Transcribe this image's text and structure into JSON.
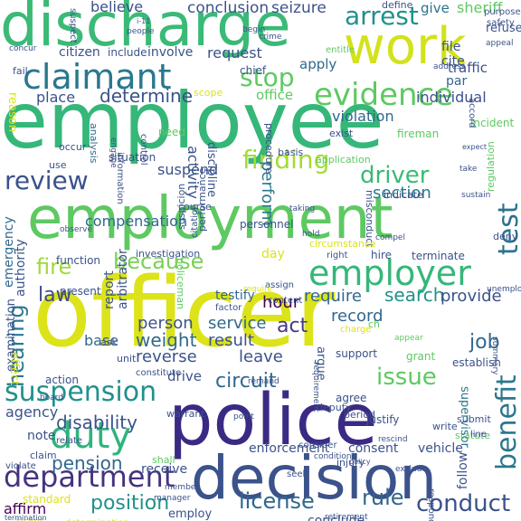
{
  "cloud": {
    "palette": {
      "deep_purple": "#440154",
      "indigo": "#3b528b",
      "teal": "#21918c",
      "green": "#5ec962",
      "yellow": "#dce319"
    },
    "words": [
      {
        "text": "discharge",
        "color": "#3aba76"
      },
      {
        "text": "work",
        "color": "#d2e21b"
      },
      {
        "text": "claimant",
        "color": "#2a788e"
      },
      {
        "text": "employee",
        "color": "#35b779"
      },
      {
        "text": "employment",
        "color": "#5ec962"
      },
      {
        "text": "officer",
        "color": "#dce319"
      },
      {
        "text": "police",
        "color": "#3b2a84"
      },
      {
        "text": "decision",
        "color": "#3b528b"
      },
      {
        "text": "evidence",
        "color": "#5ec962"
      },
      {
        "text": "arrest",
        "color": "#21918c"
      },
      {
        "text": "employer",
        "color": "#35b779"
      },
      {
        "text": "finding",
        "color": "#a5db36"
      },
      {
        "text": "duty",
        "color": "#2fb47c"
      },
      {
        "text": "department",
        "color": "#46337e"
      },
      {
        "text": "suspension",
        "color": "#21918c"
      },
      {
        "text": "review",
        "color": "#3b528b"
      },
      {
        "text": "driver",
        "color": "#3aba76"
      },
      {
        "text": "test",
        "color": "#2c728e"
      },
      {
        "text": "benefit",
        "color": "#2a788e"
      },
      {
        "text": "fire",
        "color": "#a0da39"
      },
      {
        "text": "because",
        "color": "#7ad151"
      },
      {
        "text": "law",
        "color": "#3e4a89"
      },
      {
        "text": "hearing",
        "color": "#2a788e"
      },
      {
        "text": "stop",
        "color": "#5ec962"
      },
      {
        "text": "determine",
        "color": "#3b528b"
      },
      {
        "text": "search",
        "color": "#21918c"
      },
      {
        "text": "provide",
        "color": "#3b528b"
      },
      {
        "text": "issue",
        "color": "#5ec962"
      },
      {
        "text": "circuit",
        "color": "#31688e"
      },
      {
        "text": "conduct",
        "color": "#3b528b"
      },
      {
        "text": "license",
        "color": "#31688e"
      },
      {
        "text": "rule",
        "color": "#31688e"
      },
      {
        "text": "position",
        "color": "#21918c"
      },
      {
        "text": "pension",
        "color": "#31688e"
      },
      {
        "text": "disability",
        "color": "#3b528b"
      },
      {
        "text": "job",
        "color": "#31688e"
      },
      {
        "text": "weight",
        "color": "#31688e"
      },
      {
        "text": "result",
        "color": "#3b528b"
      },
      {
        "text": "person",
        "color": "#3b528b"
      },
      {
        "text": "service",
        "color": "#31688e"
      },
      {
        "text": "act",
        "color": "#443983"
      },
      {
        "text": "record",
        "color": "#31688e"
      },
      {
        "text": "section",
        "color": "#2a788e"
      },
      {
        "text": "require",
        "color": "#31688e"
      },
      {
        "text": "hour",
        "color": "#440154"
      },
      {
        "text": "leave",
        "color": "#3b528b"
      },
      {
        "text": "reverse",
        "color": "#3b528b"
      },
      {
        "text": "base",
        "color": "#31688e"
      },
      {
        "text": "conclusion",
        "color": "#3b528b"
      },
      {
        "text": "seizure",
        "color": "#3b528b"
      },
      {
        "text": "believe",
        "color": "#3b528b"
      },
      {
        "text": "give",
        "color": "#2c728e"
      },
      {
        "text": "sheriff",
        "color": "#5ec962"
      },
      {
        "text": "request",
        "color": "#3b528b"
      },
      {
        "text": "apply",
        "color": "#31688e"
      },
      {
        "text": "perform",
        "color": "#2a788e"
      },
      {
        "text": "violation",
        "color": "#31688e"
      },
      {
        "text": "individual",
        "color": "#3b528b"
      },
      {
        "text": "activity",
        "color": "#3b528b"
      },
      {
        "text": "discipline",
        "color": "#3b528b"
      },
      {
        "text": "suspend",
        "color": "#3b528b"
      },
      {
        "text": "compensation",
        "color": "#31688e"
      },
      {
        "text": "place",
        "color": "#3b528b"
      },
      {
        "text": "office",
        "color": "#5ec962"
      },
      {
        "text": "par",
        "color": "#31688e"
      },
      {
        "text": "traffic",
        "color": "#3b528b"
      },
      {
        "text": "file",
        "color": "#3b528b"
      },
      {
        "text": "cite",
        "color": "#3b528b"
      },
      {
        "text": "citizen",
        "color": "#3b528b"
      },
      {
        "text": "include",
        "color": "#3b528b"
      },
      {
        "text": "involve",
        "color": "#3b528b"
      },
      {
        "text": "reason",
        "color": "#dce319"
      },
      {
        "text": "authority",
        "color": "#3b528b"
      },
      {
        "text": "emergency",
        "color": "#31688e"
      },
      {
        "text": "arbitrator",
        "color": "#3b528b"
      },
      {
        "text": "report",
        "color": "#3b528b"
      },
      {
        "text": "personnel",
        "color": "#3b528b"
      },
      {
        "text": "testify",
        "color": "#31688e"
      },
      {
        "text": "investigation",
        "color": "#3b528b"
      },
      {
        "text": "hire",
        "color": "#3b528b"
      },
      {
        "text": "terminate",
        "color": "#3b528b"
      },
      {
        "text": "supervisor",
        "color": "#2a788e"
      },
      {
        "text": "examination",
        "color": "#3b528b"
      },
      {
        "text": "agency",
        "color": "#3b528b"
      },
      {
        "text": "note",
        "color": "#3b528b"
      },
      {
        "text": "drive",
        "color": "#3b528b"
      },
      {
        "text": "receive",
        "color": "#3b528b"
      },
      {
        "text": "enforcement",
        "color": "#3b528b"
      },
      {
        "text": "consent",
        "color": "#3b528b"
      },
      {
        "text": "vehicle",
        "color": "#3b528b"
      },
      {
        "text": "follow",
        "color": "#3b528b"
      },
      {
        "text": "conclude",
        "color": "#3b528b"
      },
      {
        "text": "employ",
        "color": "#3b528b"
      },
      {
        "text": "affirm",
        "color": "#440154"
      },
      {
        "text": "agree",
        "color": "#3b528b"
      },
      {
        "text": "deputy",
        "color": "#3b528b"
      },
      {
        "text": "justify",
        "color": "#3b528b"
      },
      {
        "text": "submit",
        "color": "#3b528b"
      },
      {
        "text": "grant",
        "color": "#5ec962"
      },
      {
        "text": "establish",
        "color": "#3b528b"
      },
      {
        "text": "support",
        "color": "#3b528b"
      },
      {
        "text": "incident",
        "color": "#5ec962"
      },
      {
        "text": "fireman",
        "color": "#5ec962"
      },
      {
        "text": "misconduct",
        "color": "#3b528b"
      },
      {
        "text": "application",
        "color": "#5ec962"
      },
      {
        "text": "basis",
        "color": "#3b528b"
      },
      {
        "text": "course",
        "color": "#3b528b"
      },
      {
        "text": "function",
        "color": "#3b528b"
      },
      {
        "text": "present",
        "color": "#3b528b"
      },
      {
        "text": "ask",
        "color": "#3b528b"
      },
      {
        "text": "effect",
        "color": "#dce319"
      },
      {
        "text": "situation",
        "color": "#3b528b"
      },
      {
        "text": "use",
        "color": "#3b528b"
      },
      {
        "text": "occur",
        "color": "#3b528b"
      },
      {
        "text": "analysis",
        "color": "#31688e"
      },
      {
        "text": "need",
        "color": "#5ec962"
      },
      {
        "text": "scope",
        "color": "#dce319"
      },
      {
        "text": "chief",
        "color": "#3b528b"
      },
      {
        "text": "procedure",
        "color": "#3b528b"
      },
      {
        "text": "deny",
        "color": "#3b528b"
      },
      {
        "text": "refuse",
        "color": "#3b528b"
      },
      {
        "text": "safety",
        "color": "#3b528b"
      },
      {
        "text": "define",
        "color": "#3b528b"
      },
      {
        "text": "accord",
        "color": "#3b528b"
      },
      {
        "text": "exist",
        "color": "#3b528b"
      },
      {
        "text": "indicate",
        "color": "#3b528b"
      },
      {
        "text": "circumstance",
        "color": "#dce319"
      },
      {
        "text": "argue",
        "color": "#3b528b"
      },
      {
        "text": "regulation",
        "color": "#5ec962"
      },
      {
        "text": "statute",
        "color": "#5ec962"
      },
      {
        "text": "period",
        "color": "#3b528b"
      },
      {
        "text": "injury",
        "color": "#3b528b"
      },
      {
        "text": "rescind",
        "color": "#3b528b"
      },
      {
        "text": "write",
        "color": "#3b528b"
      },
      {
        "text": "warrant",
        "color": "#3b528b"
      },
      {
        "text": "relate",
        "color": "#3b528b"
      },
      {
        "text": "claim",
        "color": "#3b528b"
      },
      {
        "text": "violate",
        "color": "#3b528b"
      },
      {
        "text": "constitute",
        "color": "#3b528b"
      },
      {
        "text": "performance",
        "color": "#3b528b"
      },
      {
        "text": "suspicion",
        "color": "#3b528b"
      },
      {
        "text": "citation",
        "color": "#3b528b"
      },
      {
        "text": "policeman",
        "color": "#5ec962"
      },
      {
        "text": "unit",
        "color": "#3b528b"
      },
      {
        "text": "day",
        "color": "#dce319"
      },
      {
        "text": "control",
        "color": "#3b528b"
      },
      {
        "text": "information",
        "color": "#3b528b"
      },
      {
        "text": "action",
        "color": "#3b528b"
      },
      {
        "text": "shall",
        "color": "#5ec962"
      },
      {
        "text": "standard",
        "color": "#dce319"
      },
      {
        "text": "ticket",
        "color": "#dce319"
      },
      {
        "text": "determination",
        "color": "#dce319"
      },
      {
        "text": "suspect",
        "color": "#3b528b"
      },
      {
        "text": "people",
        "color": "#3b528b"
      },
      {
        "text": "entitle",
        "color": "#5ec962"
      },
      {
        "text": "fail",
        "color": "#3b528b"
      },
      {
        "text": "purpose",
        "color": "#3b528b"
      },
      {
        "text": "unemployment",
        "color": "#3b528b"
      },
      {
        "text": "summary",
        "color": "#3b528b"
      },
      {
        "text": "condition",
        "color": "#3b528b"
      },
      {
        "text": "consider",
        "color": "#3b528b"
      },
      {
        "text": "respond",
        "color": "#3b528b"
      },
      {
        "text": "retirement",
        "color": "#3b528b"
      },
      {
        "text": "member",
        "color": "#3b528b"
      },
      {
        "text": "manager",
        "color": "#3b528b"
      },
      {
        "text": "observe",
        "color": "#3b528b"
      },
      {
        "text": "assign",
        "color": "#3b528b"
      },
      {
        "text": "content",
        "color": "#3b528b"
      },
      {
        "text": "factor",
        "color": "#3b528b"
      },
      {
        "text": "charge",
        "color": "#dce319"
      },
      {
        "text": "requirement",
        "color": "#3b528b"
      },
      {
        "text": "seek",
        "color": "#3b528b"
      },
      {
        "text": "point",
        "color": "#3b528b"
      },
      {
        "text": "line",
        "color": "#3b528b"
      },
      {
        "text": "take",
        "color": "#3b528b"
      },
      {
        "text": "right",
        "color": "#3b528b"
      },
      {
        "text": "termination",
        "color": "#3b528b"
      },
      {
        "text": "engage",
        "color": "#3b528b"
      },
      {
        "text": "address",
        "color": "#3b528b"
      },
      {
        "text": "board",
        "color": "#3b528b"
      },
      {
        "text": "crime",
        "color": "#3b528b"
      },
      {
        "text": "begin",
        "color": "#3b528b"
      },
      {
        "text": "concur",
        "color": "#3b528b"
      },
      {
        "text": "taking",
        "color": "#3b528b"
      },
      {
        "text": "ch",
        "color": "#5ec962"
      },
      {
        "text": "sustain",
        "color": "#3b528b"
      },
      {
        "text": "remand",
        "color": "#3b528b"
      },
      {
        "text": "appear",
        "color": "#5ec962"
      },
      {
        "text": "compel",
        "color": "#3b528b"
      },
      {
        "text": "appeal",
        "color": "#3b528b"
      },
      {
        "text": "exclude",
        "color": "#3b528b"
      },
      {
        "text": "i-11",
        "color": "#3b528b"
      },
      {
        "text": "policy",
        "color": "#3b528b"
      },
      {
        "text": "require",
        "color": "#dce319"
      },
      {
        "text": "hold",
        "color": "#3b528b"
      },
      {
        "text": "expect",
        "color": "#3b528b"
      }
    ]
  }
}
